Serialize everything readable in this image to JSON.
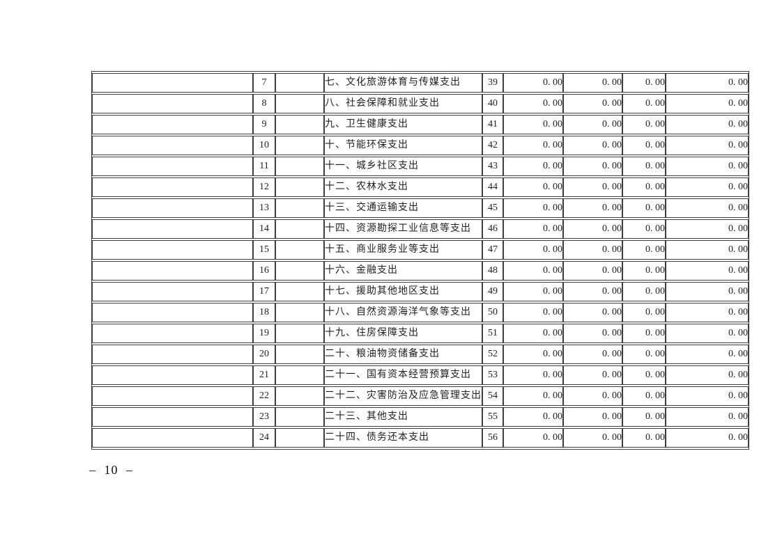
{
  "document": {
    "page_number": "– 10 –"
  },
  "colors": {
    "cell_gray": "#c1c3c3",
    "border": "#3d3d3d",
    "page_background": "#ffffff",
    "text": "#1f1f1f"
  },
  "table": {
    "rows": [
      {
        "seq": "7",
        "category": "七、文化旅游体育与传媒支出",
        "line_no": "39",
        "values": [
          "0. 00",
          "0. 00",
          "0. 00",
          "0. 00"
        ]
      },
      {
        "seq": "8",
        "category": "八、社会保障和就业支出",
        "line_no": "40",
        "values": [
          "0. 00",
          "0. 00",
          "0. 00",
          "0. 00"
        ]
      },
      {
        "seq": "9",
        "category": "九、卫生健康支出",
        "line_no": "41",
        "values": [
          "0. 00",
          "0. 00",
          "0. 00",
          "0. 00"
        ]
      },
      {
        "seq": "10",
        "category": "十、节能环保支出",
        "line_no": "42",
        "values": [
          "0. 00",
          "0. 00",
          "0. 00",
          "0. 00"
        ]
      },
      {
        "seq": "11",
        "category": "十一、城乡社区支出",
        "line_no": "43",
        "values": [
          "0. 00",
          "0. 00",
          "0. 00",
          "0. 00"
        ]
      },
      {
        "seq": "12",
        "category": "十二、农林水支出",
        "line_no": "44",
        "values": [
          "0. 00",
          "0. 00",
          "0. 00",
          "0. 00"
        ]
      },
      {
        "seq": "13",
        "category": "十三、交通运输支出",
        "line_no": "45",
        "values": [
          "0. 00",
          "0. 00",
          "0. 00",
          "0. 00"
        ]
      },
      {
        "seq": "14",
        "category": "十四、资源勘探工业信息等支出",
        "line_no": "46",
        "values": [
          "0. 00",
          "0. 00",
          "0. 00",
          "0. 00"
        ]
      },
      {
        "seq": "15",
        "category": "十五、商业服务业等支出",
        "line_no": "47",
        "values": [
          "0. 00",
          "0. 00",
          "0. 00",
          "0. 00"
        ]
      },
      {
        "seq": "16",
        "category": "十六、金融支出",
        "line_no": "48",
        "values": [
          "0. 00",
          "0. 00",
          "0. 00",
          "0. 00"
        ]
      },
      {
        "seq": "17",
        "category": "十七、援助其他地区支出",
        "line_no": "49",
        "values": [
          "0. 00",
          "0. 00",
          "0. 00",
          "0. 00"
        ]
      },
      {
        "seq": "18",
        "category": "十八、自然资源海洋气象等支出",
        "line_no": "50",
        "values": [
          "0. 00",
          "0. 00",
          "0. 00",
          "0. 00"
        ]
      },
      {
        "seq": "19",
        "category": "十九、住房保障支出",
        "line_no": "51",
        "values": [
          "0. 00",
          "0. 00",
          "0. 00",
          "0. 00"
        ]
      },
      {
        "seq": "20",
        "category": "二十、粮油物资储备支出",
        "line_no": "52",
        "values": [
          "0. 00",
          "0. 00",
          "0. 00",
          "0. 00"
        ]
      },
      {
        "seq": "21",
        "category": "二十一、国有资本经营预算支出",
        "line_no": "53",
        "values": [
          "0. 00",
          "0. 00",
          "0. 00",
          "0. 00"
        ]
      },
      {
        "seq": "22",
        "category": "二十二、灾害防治及应急管理支出",
        "line_no": "54",
        "values": [
          "0. 00",
          "0. 00",
          "0. 00",
          "0. 00"
        ]
      },
      {
        "seq": "23",
        "category": "二十三、其他支出",
        "line_no": "55",
        "values": [
          "0. 00",
          "0. 00",
          "0. 00",
          "0. 00"
        ]
      },
      {
        "seq": "24",
        "category": "二十四、债务还本支出",
        "line_no": "56",
        "values": [
          "0. 00",
          "0. 00",
          "0. 00",
          "0. 00"
        ]
      }
    ]
  }
}
